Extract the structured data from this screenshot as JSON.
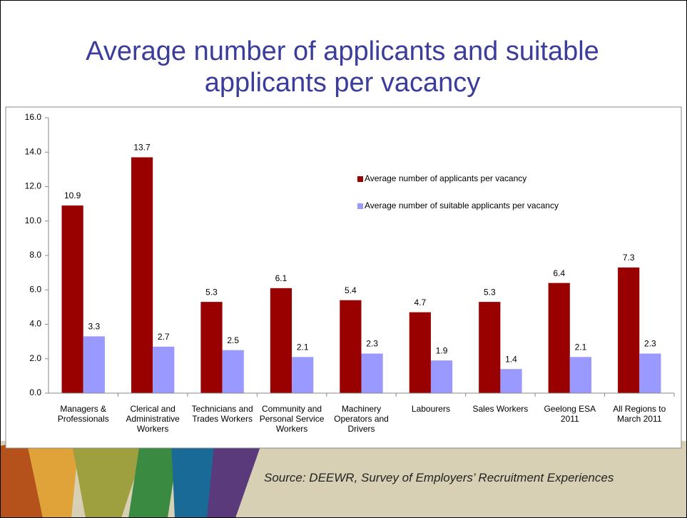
{
  "chart_data": {
    "type": "bar",
    "title": "Average number of applicants and suitable applicants per vacancy",
    "categories": [
      "Managers & Professionals",
      "Clerical and Administrative Workers",
      "Technicians and Trades Workers",
      "Community and Personal Service Workers",
      "Machinery Operators and Drivers",
      "Labourers",
      "Sales Workers",
      "Geelong ESA 2011",
      "All Regions to March 2011"
    ],
    "series": [
      {
        "name": "Average number of applicants per vacancy",
        "color": "#990000",
        "values": [
          10.9,
          13.7,
          5.3,
          6.1,
          5.4,
          4.7,
          5.3,
          6.4,
          7.3
        ]
      },
      {
        "name": "Average number of suitable applicants per vacancy",
        "color": "#9999ff",
        "values": [
          3.3,
          2.7,
          2.5,
          2.1,
          2.3,
          1.9,
          1.4,
          2.1,
          2.3
        ]
      }
    ],
    "ylim": [
      0,
      16
    ],
    "yticks": [
      {
        "value": 0,
        "label": "0.0"
      },
      {
        "value": 2,
        "label": "2.0"
      },
      {
        "value": 4,
        "label": "4.0"
      },
      {
        "value": 6,
        "label": "6.0"
      },
      {
        "value": 8,
        "label": "8.0"
      },
      {
        "value": 10,
        "label": "10.0"
      },
      {
        "value": 12,
        "label": "12.0"
      },
      {
        "value": 14,
        "label": "14.0"
      },
      {
        "value": 16,
        "label": "16.0"
      }
    ],
    "legend": "upper right",
    "source": "Source:  DEEWR, Survey of Employers’ Recruitment Experiences"
  }
}
